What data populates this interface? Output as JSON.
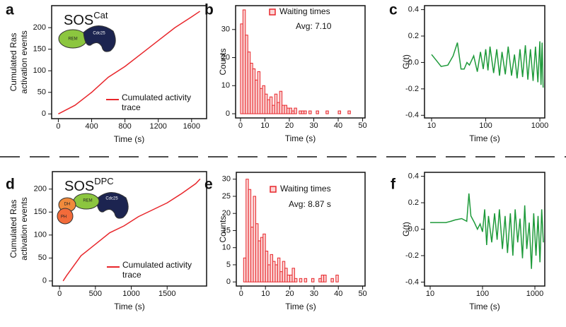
{
  "chart_data": [
    {
      "type": "line",
      "panel_label": "a",
      "title": "SOS",
      "title_sup": "Cat",
      "icon_labels": [
        "REM",
        "Cdc25"
      ],
      "xlabel": "Time (s)",
      "ylabel": [
        "Cumulated Ras",
        "activation events"
      ],
      "x": [
        0,
        200,
        400,
        600,
        800,
        1000,
        1200,
        1400,
        1600,
        1700
      ],
      "series": [
        {
          "name": "Cumulated activity trace",
          "color": "#e8262b",
          "values": [
            0,
            20,
            50,
            85,
            110,
            140,
            170,
            200,
            225,
            238
          ]
        }
      ],
      "xlim": [
        -80,
        1780
      ],
      "xticks": [
        0,
        400,
        800,
        1200,
        1600
      ],
      "ylim": [
        -11,
        251
      ],
      "yticks": [
        0,
        50,
        100,
        150,
        200
      ]
    },
    {
      "type": "histogram",
      "panel_label": "b",
      "xlabel": "Time (s)",
      "ylabel": "Counts",
      "annotation": "Avg: 7.10",
      "bins": [
        0,
        1,
        2,
        3,
        4,
        5,
        6,
        7,
        8,
        9,
        10,
        11,
        12,
        13,
        14,
        15,
        16,
        17,
        18,
        19,
        20,
        21,
        22,
        23,
        24,
        25,
        26,
        27,
        28,
        29,
        30,
        31,
        32,
        33,
        34,
        35,
        36,
        37,
        38,
        39,
        40,
        41,
        42,
        43,
        44,
        45,
        46,
        47,
        48,
        49,
        50
      ],
      "series": [
        {
          "name": "Waiting times",
          "color": "#e8262b",
          "values": [
            32,
            37,
            28,
            22,
            18,
            16,
            12,
            15,
            9,
            10,
            7,
            5,
            6,
            3,
            7,
            4,
            8,
            3,
            3,
            2,
            2,
            1,
            2,
            0,
            1,
            1,
            1,
            0,
            1,
            0,
            0,
            1,
            0,
            0,
            0,
            1,
            0,
            0,
            0,
            0,
            1,
            0,
            0,
            0,
            1,
            0,
            0,
            0,
            0,
            0
          ]
        }
      ],
      "xlim": [
        -2,
        51
      ],
      "xticks": [
        0,
        10,
        20,
        30,
        40,
        50
      ],
      "ylim": [
        -1.5,
        38.5
      ],
      "yticks": [
        0,
        10,
        20,
        30
      ]
    },
    {
      "type": "line",
      "panel_label": "c",
      "xlabel": "Time (s)",
      "ylabel": "G(t)",
      "xscale": "log",
      "x": [
        10,
        12,
        15,
        20,
        25,
        30,
        35,
        40,
        45,
        50,
        60,
        70,
        80,
        90,
        100,
        110,
        120,
        140,
        160,
        180,
        200,
        230,
        260,
        300,
        340,
        380,
        430,
        480,
        540,
        600,
        670,
        750,
        830,
        920,
        1000,
        1050,
        1100,
        1150
      ],
      "series": [
        {
          "color": "#1e9a3a",
          "values": [
            0.06,
            0.02,
            -0.03,
            -0.02,
            0.05,
            0.15,
            -0.05,
            -0.05,
            0.0,
            -0.02,
            0.05,
            -0.07,
            0.08,
            -0.05,
            0.1,
            -0.06,
            0.12,
            -0.08,
            0.1,
            -0.1,
            0.08,
            -0.09,
            0.12,
            -0.1,
            0.06,
            -0.12,
            0.1,
            -0.11,
            0.13,
            -0.13,
            0.1,
            -0.14,
            0.12,
            -0.15,
            0.16,
            -0.17,
            0.15,
            -0.19
          ]
        }
      ],
      "xlim": [
        7.4,
        1233
      ],
      "xticks": [
        10,
        100,
        1000
      ],
      "ylim": [
        -0.42,
        0.43
      ],
      "yticks": [
        -0.4,
        -0.2,
        {
          "value": 0,
          "label": "0.0"
        },
        0.2,
        0.4
      ]
    },
    {
      "type": "line",
      "panel_label": "d",
      "title": "SOS",
      "title_sup": "DPC",
      "icon_labels": [
        "DH",
        "REM",
        "Cdc25",
        "PH"
      ],
      "xlabel": "Time (s)",
      "ylabel": [
        "Cumulated Ras",
        "activation events"
      ],
      "x": [
        50,
        100,
        300,
        500,
        700,
        900,
        1100,
        1300,
        1500,
        1700,
        1900,
        1960
      ],
      "series": [
        {
          "name": "Cumulated activity trace",
          "color": "#e8262b",
          "values": [
            0,
            12,
            55,
            80,
            105,
            120,
            140,
            155,
            170,
            190,
            212,
            222
          ]
        }
      ],
      "xlim": [
        -100,
        2050
      ],
      "xticks": [
        0,
        500,
        1000,
        1500
      ],
      "ylim": [
        -11,
        238
      ],
      "yticks": [
        0,
        50,
        100,
        150,
        200
      ]
    },
    {
      "type": "histogram",
      "panel_label": "e",
      "xlabel": "Time (s)",
      "ylabel": "Counts",
      "annotation": "Avg: 8.87 s",
      "bins": [
        0,
        1,
        2,
        3,
        4,
        5,
        6,
        7,
        8,
        9,
        10,
        11,
        12,
        13,
        14,
        15,
        16,
        17,
        18,
        19,
        20,
        21,
        22,
        23,
        24,
        25,
        26,
        27,
        28,
        29,
        30,
        31,
        32,
        33,
        34,
        35,
        36,
        37,
        38,
        39,
        40,
        41,
        42,
        43,
        44,
        45,
        46,
        47,
        48,
        49,
        50
      ],
      "series": [
        {
          "name": "Waiting times",
          "color": "#e8262b",
          "values": [
            0,
            7,
            30,
            27,
            16,
            25,
            17,
            12,
            13,
            14,
            9,
            5,
            8,
            6,
            5,
            7,
            3,
            6,
            4,
            2,
            2,
            4,
            1,
            0,
            1,
            0,
            1,
            0,
            0,
            1,
            0,
            0,
            1,
            2,
            2,
            0,
            0,
            1,
            0,
            2,
            0,
            0,
            0,
            0,
            0,
            0,
            0,
            0,
            0,
            0
          ]
        }
      ],
      "xlim": [
        -2,
        51
      ],
      "xticks": [
        0,
        10,
        20,
        30,
        40,
        50
      ],
      "ylim": [
        -1.2,
        32
      ],
      "yticks": [
        0,
        5,
        10,
        15,
        20,
        25,
        30
      ]
    },
    {
      "type": "line",
      "panel_label": "f",
      "xlabel": "Time (s)",
      "ylabel": "G(t)",
      "xscale": "log",
      "x": [
        10,
        15,
        20,
        25,
        30,
        40,
        50,
        55,
        60,
        70,
        80,
        90,
        100,
        110,
        120,
        130,
        150,
        170,
        190,
        210,
        240,
        270,
        300,
        340,
        380,
        420,
        470,
        520,
        580,
        640,
        700,
        780,
        860,
        950,
        1050,
        1150,
        1250,
        1350,
        1450
      ],
      "series": [
        {
          "color": "#1e9a3a",
          "values": [
            0.05,
            0.05,
            0.05,
            0.06,
            0.07,
            0.08,
            0.06,
            0.27,
            0.1,
            0.05,
            0.0,
            0.04,
            -0.02,
            0.15,
            -0.12,
            0.1,
            -0.1,
            0.12,
            -0.08,
            0.15,
            -0.15,
            0.1,
            -0.18,
            0.12,
            -0.2,
            0.15,
            -0.1,
            0.08,
            -0.22,
            0.18,
            -0.15,
            0.05,
            -0.3,
            0.12,
            -0.2,
            0.1,
            -0.25,
            0.15,
            -0.1
          ]
        }
      ],
      "xlim": [
        7.8,
        1545
      ],
      "xticks": [
        10,
        100,
        1000
      ],
      "ylim": [
        -0.43,
        0.43
      ],
      "yticks": [
        -0.4,
        -0.2,
        {
          "value": 0,
          "label": "0.0"
        },
        0.2,
        0.4
      ]
    }
  ]
}
